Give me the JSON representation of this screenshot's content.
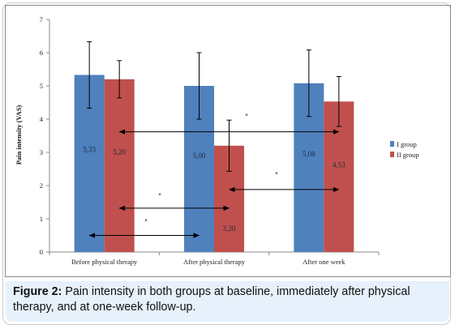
{
  "chart_data": {
    "type": "bar",
    "categories": [
      "Before physical therapy",
      "After physical therapy",
      "After one week"
    ],
    "series": [
      {
        "name": "I group",
        "color": "#4f81bd",
        "values": [
          5.33,
          5.0,
          5.08
        ],
        "labels": [
          "5,33",
          "5,00",
          "5,08"
        ],
        "error": [
          1.0,
          1.0,
          1.0
        ]
      },
      {
        "name": "II group",
        "color": "#c0504d",
        "values": [
          5.2,
          3.2,
          4.53
        ],
        "labels": [
          "5,20",
          "3,20",
          "4,53"
        ],
        "error": [
          0.56,
          0.77,
          0.75
        ]
      }
    ],
    "ylabel": "Pain intensity (VAS)",
    "ylim": [
      0,
      7
    ],
    "yticks": [
      "0",
      "1",
      "2",
      "3",
      "4",
      "5",
      "6",
      "7"
    ],
    "grid": false,
    "legend_position": "right",
    "annotations": [
      "*",
      "*",
      "*",
      "*"
    ],
    "comparisons": [
      {
        "from": "Before physical therapy / I group",
        "to": "After physical therapy / I group",
        "y": 0.5
      },
      {
        "from": "Before physical therapy / II group",
        "to": "After physical therapy / II group",
        "y": 1.32
      },
      {
        "from": "After physical therapy / II group",
        "to": "After one week / II group",
        "y": 1.88
      },
      {
        "from": "Before physical therapy / II group",
        "to": "After one week / II group",
        "y": 3.62
      }
    ]
  },
  "caption": {
    "label": "Figure 2:",
    "text": " Pain intensity in both groups at baseline, immediately after physical therapy, and at one-week follow-up."
  }
}
